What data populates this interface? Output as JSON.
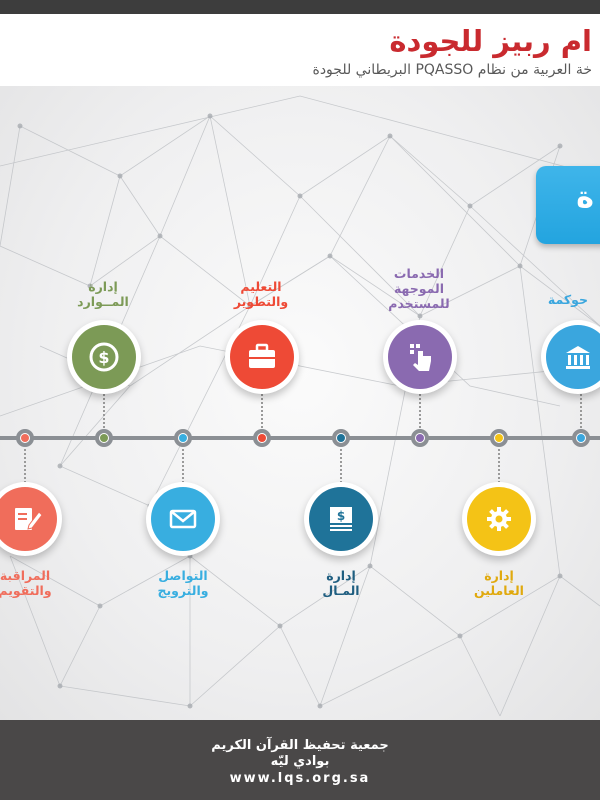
{
  "header": {
    "title": "ام ربيز للجودة",
    "subtitle": "خة العربية من نظام PQASSO البريطاني للجودة"
  },
  "banner": {
    "text": "ة"
  },
  "top_items": [
    {
      "key": "resources",
      "line1": "إدارة",
      "line2": "المــوارد",
      "color": "#7c9a56",
      "label_color": "#7c9a56",
      "icon": "dollar-coin-icon"
    },
    {
      "key": "learning",
      "line1": "التعليم",
      "line2": "والتطوير",
      "color": "#ee4a36",
      "label_color": "#ee4a36",
      "icon": "briefcase-icon"
    },
    {
      "key": "services",
      "line1": "الخدمات",
      "line2": "الموجهة",
      "line3": "للمستخدم",
      "color": "#8a6ab0",
      "label_color": "#8a6ab0",
      "icon": "touch-hand-icon"
    },
    {
      "key": "governance",
      "line1": "حوكمة",
      "color": "#3aa6de",
      "label_color": "#3aa6de",
      "icon": "bank-building-icon"
    }
  ],
  "bottom_items": [
    {
      "key": "monitoring",
      "line1": "المراقبة",
      "line2": "والتقويم",
      "color": "#f06d5b",
      "label_color": "#f06d5b",
      "icon": "edit-document-icon"
    },
    {
      "key": "communication",
      "line1": "التواصل",
      "line2": "والترويج",
      "color": "#38aee0",
      "label_color": "#38aee0",
      "icon": "envelope-icon"
    },
    {
      "key": "finance",
      "line1": "إدارة",
      "line2": "المـال",
      "color": "#1f7399",
      "label_color": "#1f5e80",
      "icon": "banknote-icon"
    },
    {
      "key": "staff",
      "line1": "إدارة",
      "line2": "العاملين",
      "color": "#f4c316",
      "label_color": "#e0a90e",
      "icon": "gear-icon"
    }
  ],
  "timeline_dots": [
    "#f06d5b",
    "#7c9a56",
    "#38aee0",
    "#ee4a36",
    "#1f7399",
    "#8a6ab0",
    "#f4c316",
    "#3aa6de"
  ],
  "footer": {
    "org_line1": "جمعية تحفيظ القرآن الكريم",
    "org_line2": "بوادي ليّه",
    "website": "www.lqs.org.sa"
  }
}
